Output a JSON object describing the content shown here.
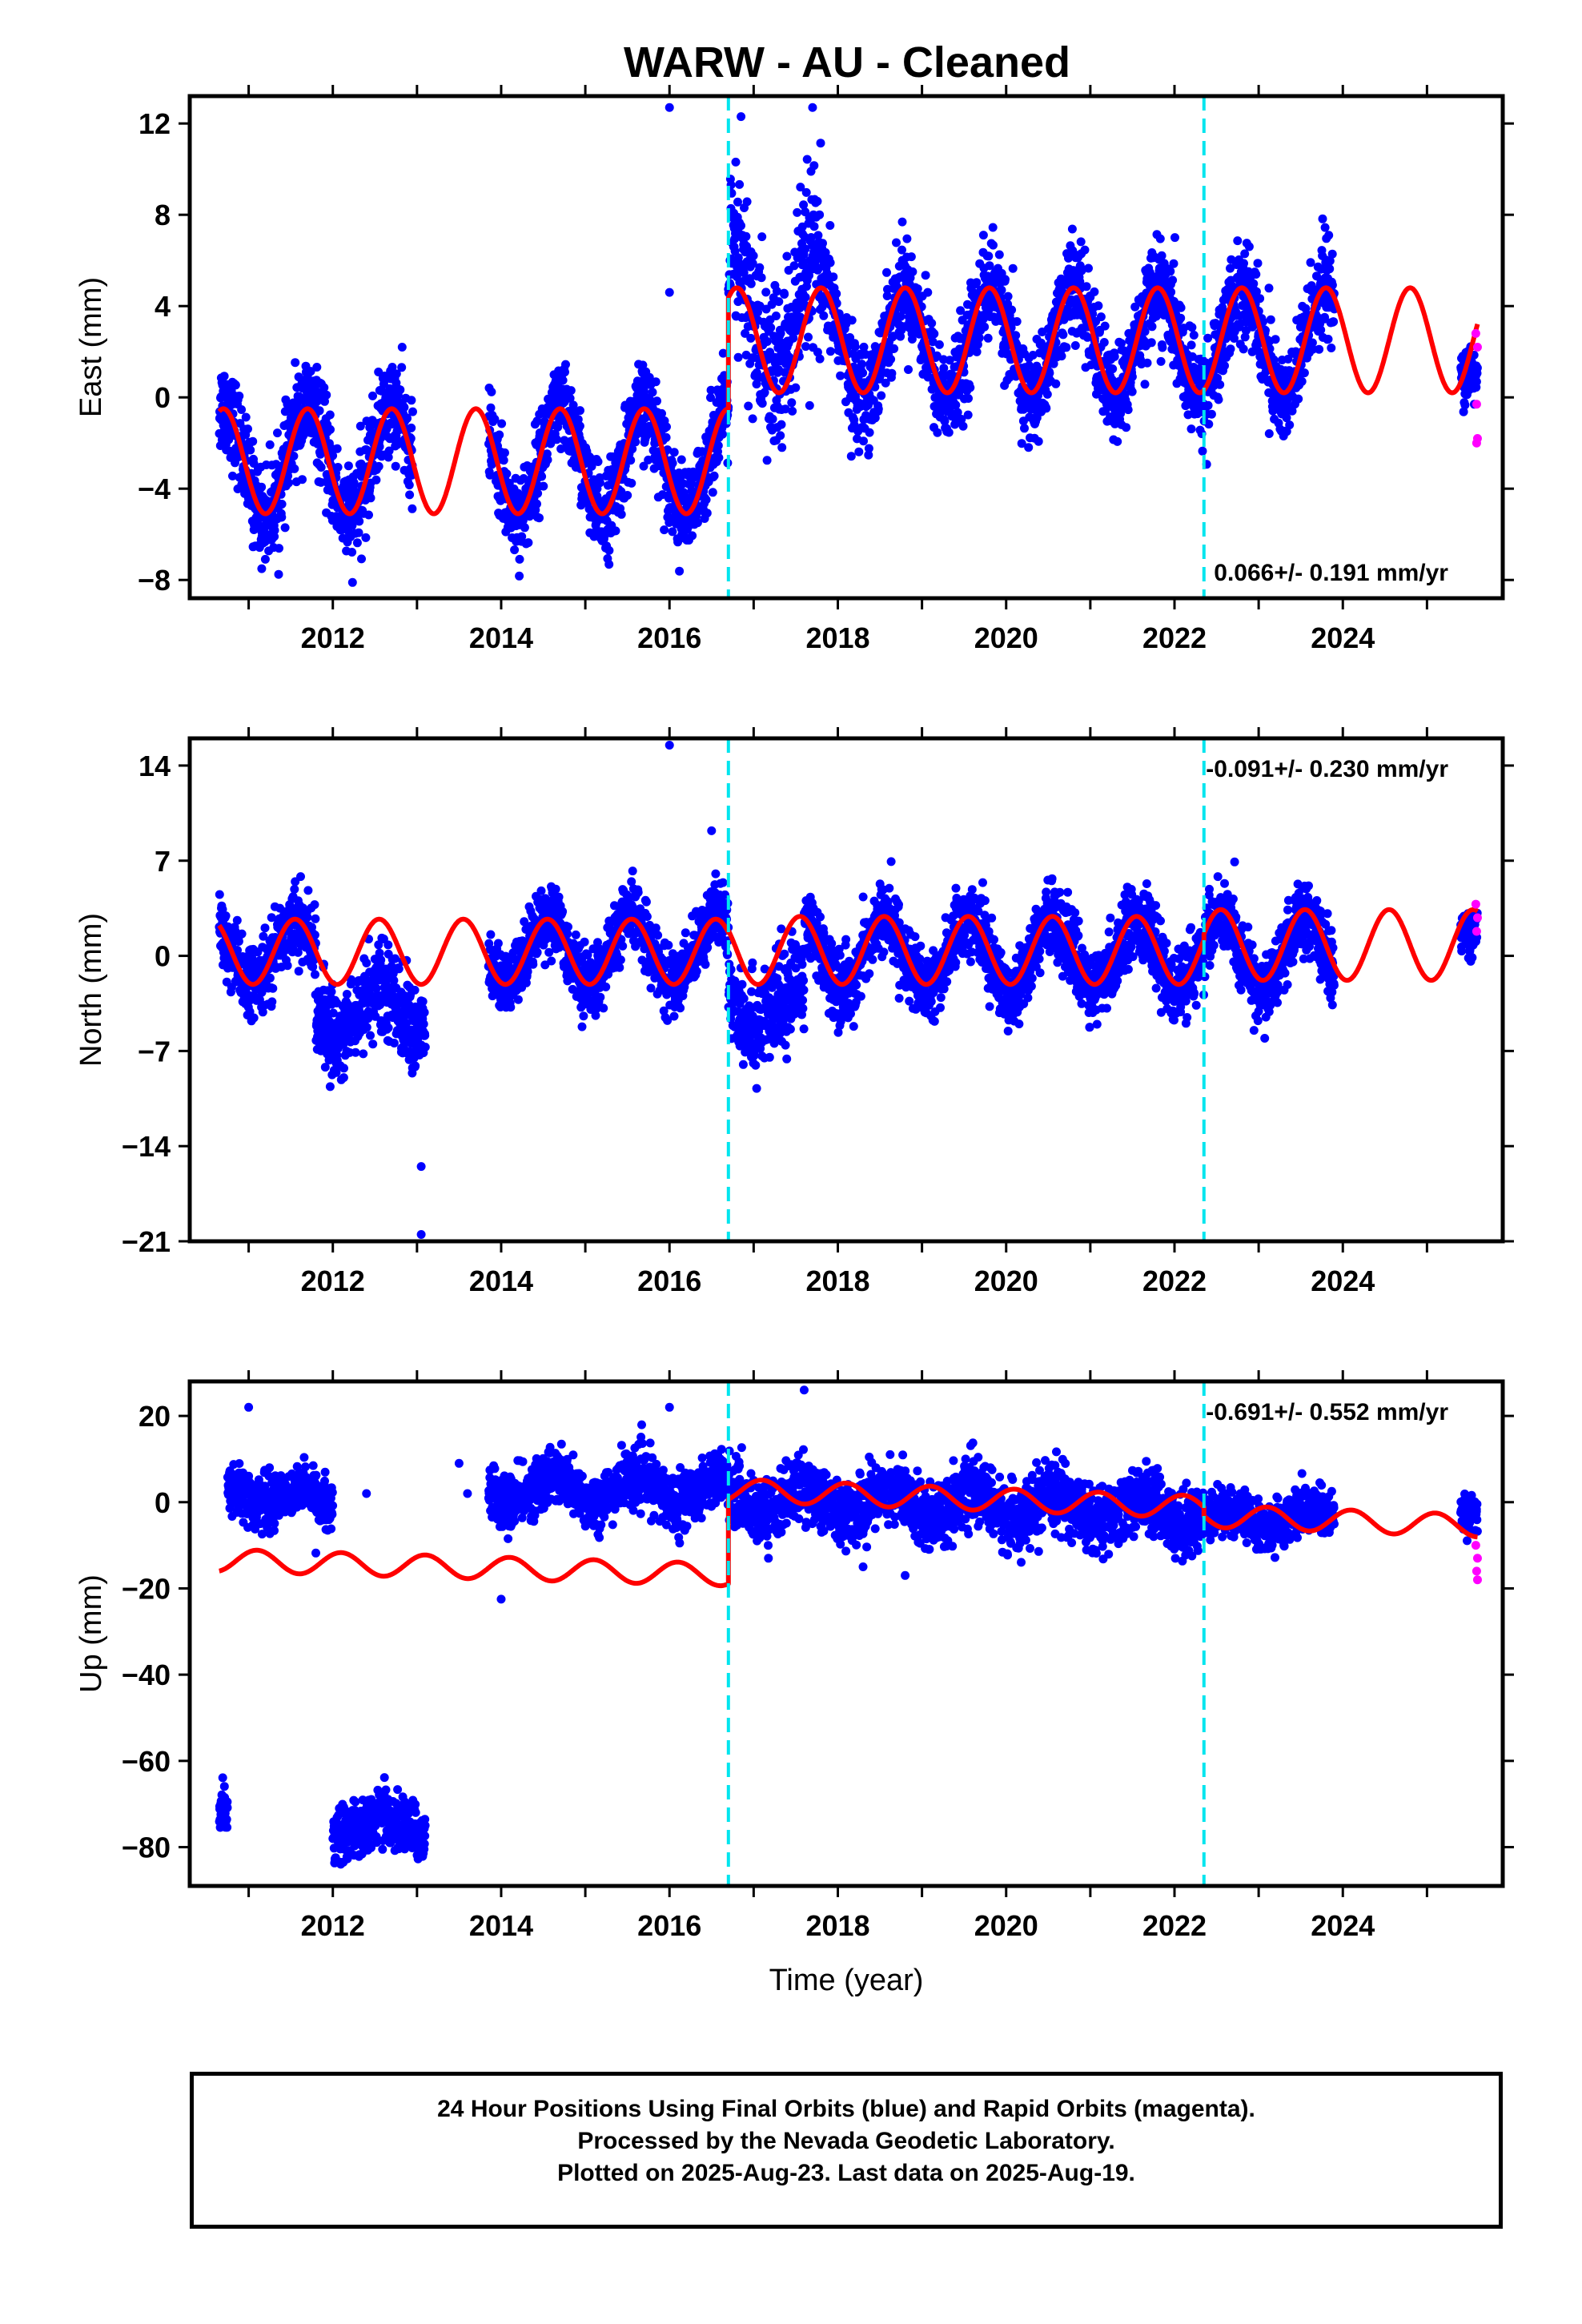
{
  "chart_data": {
    "title": "WARW  - AU - Cleaned",
    "xlabel": "Time (year)",
    "x_ticks": [
      "2012",
      "2014",
      "2016",
      "2018",
      "2020",
      "2022",
      "2024"
    ],
    "xlim": [
      2010.3,
      2025.9
    ],
    "colors": {
      "final_orbits": "#0000ff",
      "rapid_orbits": "#ff00ff",
      "model": "#ff0000",
      "offsets": "#00e5ee"
    },
    "offset_lines": [
      2016.7,
      2022.35
    ],
    "panels": [
      {
        "type": "scatter",
        "ylabel": "East (mm)",
        "ylim": [
          -8.8,
          13.2
        ],
        "y_ticks": [
          "-8",
          "-4",
          "0",
          "4",
          "8",
          "12"
        ],
        "rate": "0.066+/- 0.191 mm/yr",
        "rate_position": "bottom-right",
        "data_segments": [
          {
            "x0": 2010.65,
            "x1": 2012.95,
            "offset": -2.8,
            "amp": 2.4,
            "phase_year": 0.7,
            "spread": 1.3,
            "trend": 0
          },
          {
            "x0": 2013.85,
            "x1": 2016.7,
            "offset": -2.8,
            "amp": 2.3,
            "phase_year": 0.7,
            "spread": 1.2,
            "trend": 0
          },
          {
            "x0": 2016.7,
            "x1": 2017.8,
            "offset": 3.5,
            "amp": 2.5,
            "phase_year": 0.75,
            "spread": 2.5,
            "trend": 0
          },
          {
            "x0": 2017.8,
            "x1": 2023.9,
            "offset": 2.4,
            "amp": 2.4,
            "phase_year": 0.8,
            "spread": 1.3,
            "trend": 0
          },
          {
            "x0": 2025.4,
            "x1": 2025.6,
            "offset": 1.0,
            "amp": 0.6,
            "phase_year": 0.8,
            "spread": 0.8,
            "trend": 0
          }
        ],
        "model_segments": [
          {
            "x0": 2010.65,
            "x1": 2016.7,
            "offset": -2.8,
            "amp": 2.3,
            "phase_year": 0.7,
            "trend": 0
          },
          {
            "x0": 2016.7,
            "x1": 2025.6,
            "offset": 2.5,
            "amp": 2.3,
            "phase_year": 0.8,
            "trend": 0
          }
        ],
        "rapid_points": [
          [
            2025.58,
            2.8
          ],
          [
            2025.6,
            2.2
          ],
          [
            2025.59,
            -0.3
          ],
          [
            2025.6,
            -1.8
          ],
          [
            2025.59,
            -2.0
          ]
        ],
        "outliers": [
          [
            2016.0,
            12.7
          ],
          [
            2016.0,
            4.6
          ],
          [
            2017.7,
            12.7
          ],
          [
            2016.85,
            12.3
          ]
        ]
      },
      {
        "type": "scatter",
        "ylabel": "North (mm)",
        "ylim": [
          -21,
          16
        ],
        "y_ticks": [
          "-21",
          "-14",
          "-7",
          "0",
          "7",
          "14"
        ],
        "rate": "-0.091+/- 0.230 mm/yr",
        "rate_position": "top-right",
        "data_segments": [
          {
            "x0": 2010.65,
            "x1": 2011.8,
            "offset": 0.2,
            "amp": 2.3,
            "phase_year": 0.55,
            "spread": 1.6,
            "trend": 0
          },
          {
            "x0": 2011.8,
            "x1": 2013.1,
            "offset": -4.0,
            "amp": 1.8,
            "phase_year": 0.55,
            "spread": 2.0,
            "trend": 0
          },
          {
            "x0": 2013.85,
            "x1": 2016.7,
            "offset": 0.4,
            "amp": 2.5,
            "phase_year": 0.55,
            "spread": 1.5,
            "trend": 0
          },
          {
            "x0": 2016.7,
            "x1": 2017.6,
            "offset": -3.5,
            "amp": 1.5,
            "phase_year": 0.55,
            "spread": 2.2,
            "trend": 0
          },
          {
            "x0": 2017.6,
            "x1": 2023.9,
            "offset": 0.1,
            "amp": 2.6,
            "phase_year": 0.55,
            "spread": 1.6,
            "trend": 0
          },
          {
            "x0": 2025.4,
            "x1": 2025.6,
            "offset": 1.0,
            "amp": 1.0,
            "phase_year": 0.55,
            "spread": 1.2,
            "trend": 0
          }
        ],
        "model_segments": [
          {
            "x0": 2010.65,
            "x1": 2016.7,
            "offset": 0.3,
            "amp": 2.4,
            "phase_year": 0.55,
            "trend": 0
          },
          {
            "x0": 2016.7,
            "x1": 2022.35,
            "offset": 0.4,
            "amp": 2.5,
            "phase_year": 0.55,
            "trend": 0
          },
          {
            "x0": 2022.35,
            "x1": 2025.6,
            "offset": 0.8,
            "amp": 2.6,
            "phase_year": 0.55,
            "trend": 0
          }
        ],
        "rapid_points": [
          [
            2025.58,
            3.8
          ],
          [
            2025.6,
            2.8
          ],
          [
            2025.59,
            1.8
          ]
        ],
        "outliers": [
          [
            2016.0,
            15.5
          ],
          [
            2016.5,
            9.2
          ],
          [
            2013.05,
            -15.5
          ],
          [
            2013.05,
            -20.5
          ]
        ]
      },
      {
        "type": "scatter",
        "ylabel": "Up (mm)",
        "ylim": [
          -89,
          28
        ],
        "y_ticks": [
          "-80",
          "-60",
          "-40",
          "-20",
          "0",
          "20"
        ],
        "rate": "-0.691+/- 0.552 mm/yr",
        "rate_position": "top-right",
        "data_segments": [
          {
            "x0": 2010.65,
            "x1": 2010.75,
            "offset": -71,
            "amp": 0,
            "phase_year": 0.6,
            "spread": 4,
            "trend": 0
          },
          {
            "x0": 2010.75,
            "x1": 2011.2,
            "offset": 3,
            "amp": 3,
            "phase_year": 0.6,
            "spread": 3.5,
            "trend": 0
          },
          {
            "x0": 2011.2,
            "x1": 2012.0,
            "offset": 1,
            "amp": 2,
            "phase_year": 0.6,
            "spread": 3.5,
            "trend": 0
          },
          {
            "x0": 2012.0,
            "x1": 2013.1,
            "offset": -75,
            "amp": 2,
            "phase_year": 0.6,
            "spread": 4,
            "trend": 0
          },
          {
            "x0": 2013.85,
            "x1": 2016.7,
            "offset": 3,
            "amp": 3,
            "phase_year": 0.6,
            "spread": 4,
            "trend": 0
          },
          {
            "x0": 2016.7,
            "x1": 2022.35,
            "offset": 1,
            "amp": 3,
            "phase_year": 0.6,
            "spread": 4.5,
            "trend": -0.6
          },
          {
            "x0": 2022.35,
            "x1": 2023.9,
            "offset": -4,
            "amp": 2.5,
            "phase_year": 0.6,
            "spread": 3.5,
            "trend": 0
          },
          {
            "x0": 2025.4,
            "x1": 2025.6,
            "offset": -4,
            "amp": 1.5,
            "phase_year": 0.6,
            "spread": 2.5,
            "trend": 0
          }
        ],
        "model_segments": [
          {
            "x0": 2010.65,
            "x1": 2016.7,
            "offset": -13.5,
            "amp": 2.6,
            "phase_year": 0.1,
            "trend": -0.55
          },
          {
            "x0": 2016.7,
            "x1": 2022.35,
            "offset": 2.8,
            "amp": 2.6,
            "phase_year": 0.1,
            "trend": -0.7
          },
          {
            "x0": 2022.35,
            "x1": 2025.6,
            "offset": -3.2,
            "amp": 2.6,
            "phase_year": 0.1,
            "trend": -0.7
          }
        ],
        "rapid_points": [
          [
            2025.58,
            -10
          ],
          [
            2025.6,
            -13
          ],
          [
            2025.59,
            -16
          ],
          [
            2025.6,
            -18
          ]
        ],
        "outliers": [
          [
            2013.6,
            2
          ],
          [
            2013.5,
            9
          ],
          [
            2014.0,
            -22.5
          ],
          [
            2016.0,
            22
          ],
          [
            2017.6,
            26
          ],
          [
            2018.8,
            -17
          ],
          [
            2018.3,
            -15
          ],
          [
            2012.4,
            2
          ],
          [
            2011.0,
            22
          ]
        ]
      }
    ]
  },
  "caption": {
    "line1": "24 Hour Positions Using Final Orbits (blue) and Rapid Orbits (magenta).",
    "line2": "Processed by the Nevada Geodetic Laboratory.",
    "line3": "Plotted on 2025-Aug-23. Last data on 2025-Aug-19."
  }
}
